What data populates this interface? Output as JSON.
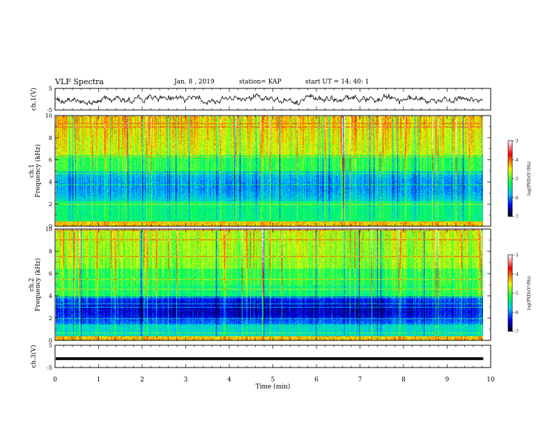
{
  "header": {
    "title": "VLF Spectra",
    "date": "Jan. 8 , 2019",
    "station": "station= KAP",
    "start": "start  UT =   14: 40: 1"
  },
  "chart_data": [
    {
      "type": "line",
      "panel": "ch1-waveform",
      "ylabel": "ch.1(V)",
      "ylim": [
        -5,
        5
      ],
      "yticks": [
        "5",
        "-5"
      ],
      "xlim": [
        0,
        10
      ],
      "description_values": "noisy waveform centered near 0 V"
    },
    {
      "type": "heatmap",
      "panel": "ch1-spectrogram",
      "ylabel": "ch.1\nFrequency (kHz)",
      "ylim": [
        0,
        10
      ],
      "yticks": [
        "0",
        "2",
        "4",
        "6",
        "8",
        "10"
      ],
      "xlim": [
        0,
        9.83
      ],
      "colorbar": {
        "label": "log(PSD)(V²/Hz)",
        "range": [
          -7,
          -3
        ],
        "ticks": [
          "-3",
          "-4",
          "-5",
          "-6",
          "-7"
        ]
      }
    },
    {
      "type": "heatmap",
      "panel": "ch2-spectrogram",
      "ylabel": "ch.2\nFrequency (kHz)",
      "ylim": [
        0,
        10
      ],
      "yticks": [
        "0",
        "2",
        "4",
        "6",
        "8",
        "10"
      ],
      "xlim": [
        0,
        9.83
      ],
      "colorbar": {
        "label": "log(PSD)(V²/Hz)",
        "range": [
          -7,
          -3
        ],
        "ticks": [
          "-3",
          "-4",
          "-5",
          "-6",
          "-7"
        ]
      }
    },
    {
      "type": "line",
      "panel": "ch3-waveform",
      "ylabel": "ch.3(V)",
      "ylim": [
        -5,
        5
      ],
      "yticks": [
        "5",
        "-5"
      ],
      "xlim": [
        0,
        10
      ],
      "description_values": "flat line at approximately -1 V"
    }
  ],
  "x_axis": {
    "label": "Time (min)",
    "ticks": [
      "0",
      "1",
      "2",
      "3",
      "4",
      "5",
      "6",
      "7",
      "8",
      "9",
      "10"
    ],
    "range": [
      0,
      10
    ]
  },
  "colors": {
    "colormap": [
      "#000000",
      "#0000ff",
      "#00e0ff",
      "#00ff40",
      "#ffff00",
      "#ff0000",
      "#ffffff"
    ]
  }
}
